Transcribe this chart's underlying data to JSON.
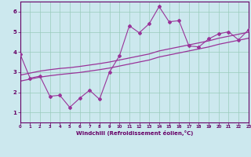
{
  "xlabel": "Windchill (Refroidissement éolien,°C)",
  "x_data": [
    0,
    1,
    2,
    3,
    4,
    5,
    6,
    7,
    8,
    9,
    10,
    11,
    12,
    13,
    14,
    15,
    16,
    17,
    18,
    19,
    20,
    21,
    22,
    23
  ],
  "y_scatter": [
    3.9,
    2.7,
    2.8,
    1.8,
    1.85,
    1.25,
    1.7,
    2.1,
    1.65,
    3.0,
    3.8,
    5.3,
    4.95,
    5.4,
    6.25,
    5.5,
    5.55,
    4.3,
    4.25,
    4.65,
    4.9,
    5.0,
    4.6,
    5.1
  ],
  "y_trend1": [
    2.85,
    2.95,
    3.05,
    3.12,
    3.18,
    3.22,
    3.28,
    3.35,
    3.42,
    3.5,
    3.6,
    3.7,
    3.8,
    3.9,
    4.05,
    4.15,
    4.25,
    4.35,
    4.45,
    4.55,
    4.68,
    4.78,
    4.88,
    4.98
  ],
  "y_trend2": [
    2.55,
    2.65,
    2.75,
    2.82,
    2.88,
    2.93,
    2.98,
    3.05,
    3.12,
    3.2,
    3.3,
    3.4,
    3.5,
    3.6,
    3.75,
    3.85,
    3.95,
    4.05,
    4.15,
    4.25,
    4.38,
    4.48,
    4.58,
    4.68
  ],
  "line_color": "#993399",
  "bg_color": "#cce8ee",
  "grid_color": "#99ccbb",
  "axis_color": "#660066",
  "xlim": [
    0,
    23
  ],
  "ylim": [
    0.5,
    6.5
  ],
  "yticks": [
    1,
    2,
    3,
    4,
    5,
    6
  ],
  "xticks": [
    0,
    1,
    2,
    3,
    4,
    5,
    6,
    7,
    8,
    9,
    10,
    11,
    12,
    13,
    14,
    15,
    16,
    17,
    18,
    19,
    20,
    21,
    22,
    23
  ]
}
